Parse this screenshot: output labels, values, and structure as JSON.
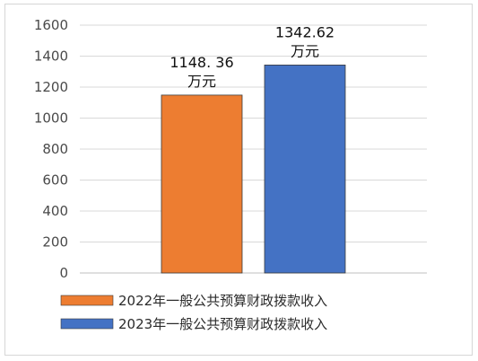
{
  "chart_data": {
    "type": "bar",
    "title": "",
    "xlabel": "",
    "ylabel": "",
    "ylim": [
      0,
      1600
    ],
    "yticks": [
      0,
      200,
      400,
      600,
      800,
      1000,
      1200,
      1400,
      1600
    ],
    "grid": true,
    "legend_position": "bottom",
    "series": [
      {
        "name": "2022年一般公共预算财政拨款收入",
        "value": 1148.36,
        "label_lines": [
          "1148. 36",
          "万元"
        ],
        "color": "#ED7D31"
      },
      {
        "name": "2023年一般公共预算财政拨款收入",
        "value": 1342.62,
        "label_lines": [
          "1342.62",
          "万元"
        ],
        "color": "#4472C4"
      }
    ]
  }
}
